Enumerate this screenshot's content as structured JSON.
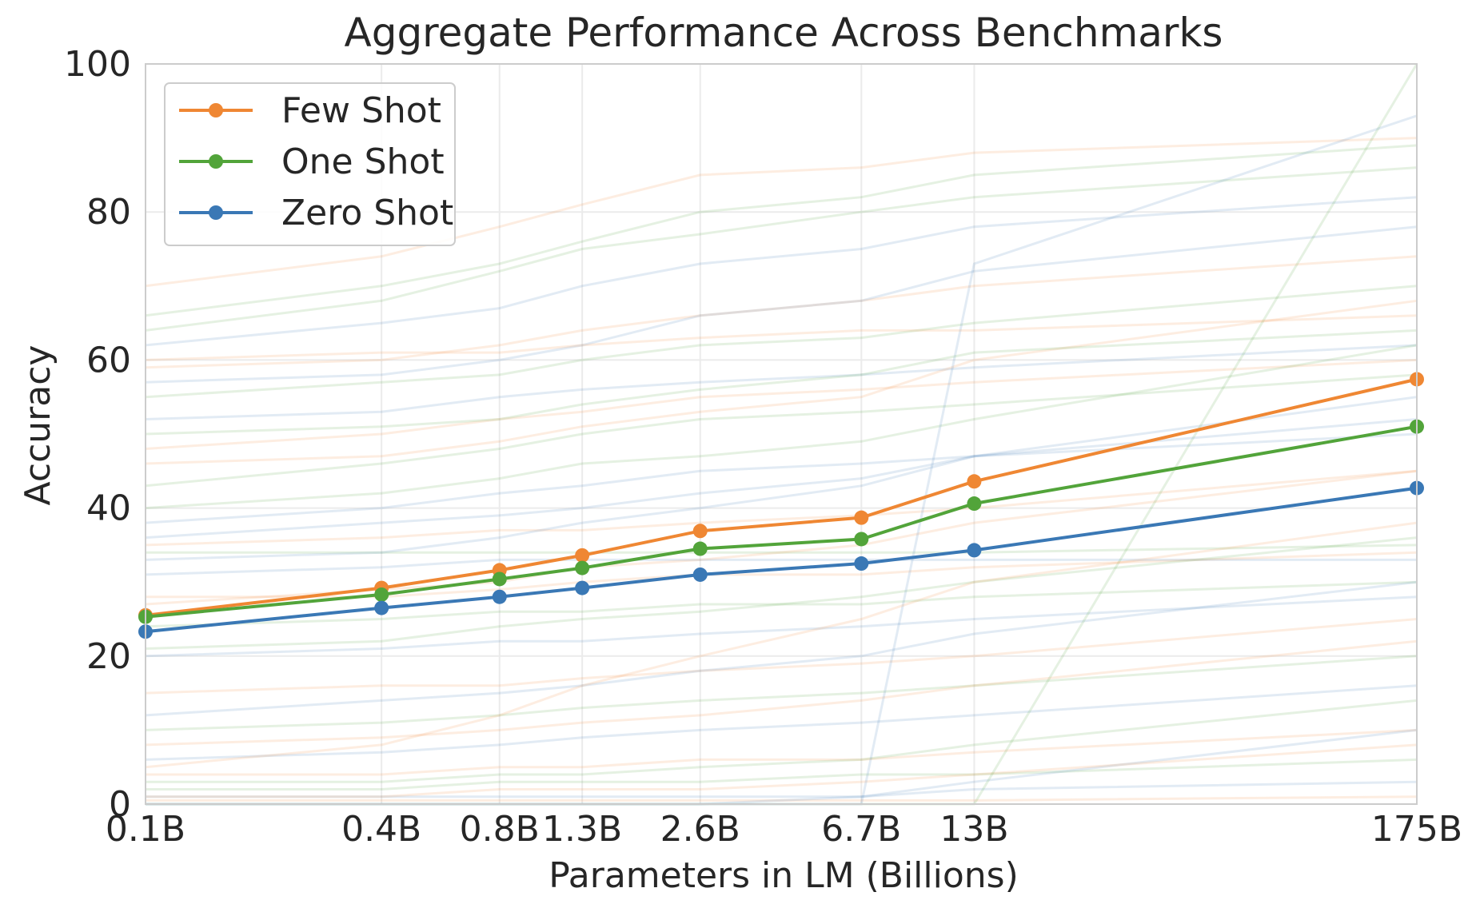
{
  "chart_data": {
    "type": "line",
    "title": "Aggregate Performance Across Benchmarks",
    "xlabel": "Parameters in LM (Billions)",
    "ylabel": "Accuracy",
    "x_scale": "log",
    "x_values": [
      0.1,
      0.4,
      0.8,
      1.3,
      2.6,
      6.7,
      13,
      175
    ],
    "x_tick_labels": [
      "0.1B",
      "0.4B",
      "0.8B",
      "1.3B",
      "2.6B",
      "6.7B",
      "13B",
      "175B"
    ],
    "ylim": [
      0,
      100
    ],
    "y_ticks": [
      0,
      20,
      40,
      60,
      80,
      100
    ],
    "grid": true,
    "legend_position": "top-left",
    "series": [
      {
        "name": "Few Shot",
        "color": "#ef8733",
        "values": [
          25.5,
          29.2,
          31.6,
          33.6,
          36.9,
          38.7,
          43.6,
          57.4
        ]
      },
      {
        "name": "One Shot",
        "color": "#52a43a",
        "values": [
          25.3,
          28.3,
          30.4,
          31.9,
          34.5,
          35.8,
          40.6,
          51.0
        ]
      },
      {
        "name": "Zero Shot",
        "color": "#3a78b5",
        "values": [
          23.3,
          26.5,
          28.0,
          29.2,
          31.0,
          32.5,
          34.3,
          42.7
        ]
      }
    ],
    "background_lines": {
      "colors": [
        "#ef8733",
        "#52a43a",
        "#3a78b5"
      ],
      "opacity": 0.15,
      "lines": [
        [
          70,
          74,
          78,
          81,
          85,
          86,
          88,
          90
        ],
        [
          64,
          68,
          72,
          75,
          77,
          80,
          82,
          86
        ],
        [
          62,
          65,
          67,
          70,
          73,
          75,
          78,
          82
        ],
        [
          59,
          60,
          62,
          64,
          66,
          68,
          70,
          74
        ],
        [
          55,
          57,
          58,
          60,
          62,
          63,
          65,
          70
        ],
        [
          52,
          53,
          55,
          56,
          57,
          58,
          59,
          62
        ],
        [
          48,
          50,
          52,
          53,
          55,
          56,
          57,
          60
        ],
        [
          43,
          46,
          48,
          50,
          52,
          53,
          54,
          58
        ],
        [
          38,
          40,
          42,
          43,
          45,
          46,
          47,
          50
        ],
        [
          35,
          36,
          37,
          37,
          38,
          39,
          40,
          45
        ],
        [
          34,
          34,
          34,
          34,
          34,
          34,
          34,
          35
        ],
        [
          31,
          32,
          33,
          33,
          33,
          33,
          33,
          33
        ],
        [
          28,
          28,
          29,
          30,
          31,
          31,
          32,
          34
        ],
        [
          24,
          25,
          26,
          26,
          27,
          27,
          28,
          30
        ],
        [
          20,
          21,
          22,
          22,
          23,
          24,
          25,
          28
        ],
        [
          15,
          16,
          16,
          17,
          18,
          19,
          20,
          25
        ],
        [
          10,
          11,
          12,
          13,
          14,
          15,
          16,
          20
        ],
        [
          6,
          7,
          8,
          9,
          10,
          11,
          12,
          16
        ],
        [
          4,
          4,
          5,
          5,
          6,
          6,
          7,
          10
        ],
        [
          2,
          2,
          3,
          3,
          3,
          4,
          4,
          6
        ],
        [
          1,
          1,
          1,
          1,
          1,
          1,
          2,
          3
        ],
        [
          0.5,
          0.5,
          0.5,
          0.5,
          0.5,
          0.5,
          0.5,
          1
        ],
        [
          66,
          70,
          73,
          76,
          80,
          82,
          85,
          89
        ],
        [
          57,
          58,
          60,
          62,
          66,
          68,
          72,
          78
        ],
        [
          46,
          47,
          49,
          51,
          53,
          55,
          60,
          68
        ],
        [
          40,
          42,
          44,
          46,
          47,
          49,
          52,
          62
        ],
        [
          33,
          34,
          36,
          38,
          40,
          43,
          47,
          55
        ],
        [
          27,
          29,
          30,
          32,
          33,
          35,
          38,
          45
        ],
        [
          21,
          22,
          24,
          25,
          26,
          28,
          30,
          36
        ],
        [
          12,
          14,
          15,
          16,
          18,
          20,
          23,
          30
        ],
        [
          8,
          9,
          10,
          11,
          12,
          14,
          16,
          22
        ],
        [
          3,
          3,
          4,
          4,
          5,
          6,
          8,
          14
        ],
        [
          0,
          0,
          0,
          0,
          0,
          1,
          3,
          10
        ],
        [
          1,
          1,
          2,
          2,
          2,
          3,
          4,
          8
        ],
        [
          0,
          0,
          0,
          0,
          0,
          0,
          0,
          100
        ],
        [
          0,
          0,
          0,
          0,
          0,
          0,
          73,
          93
        ],
        [
          5,
          8,
          12,
          16,
          20,
          25,
          30,
          38
        ],
        [
          50,
          51,
          52,
          54,
          56,
          58,
          61,
          64
        ],
        [
          36,
          38,
          39,
          40,
          42,
          44,
          47,
          52
        ],
        [
          60,
          61,
          61,
          62,
          63,
          64,
          64,
          66
        ]
      ]
    }
  }
}
